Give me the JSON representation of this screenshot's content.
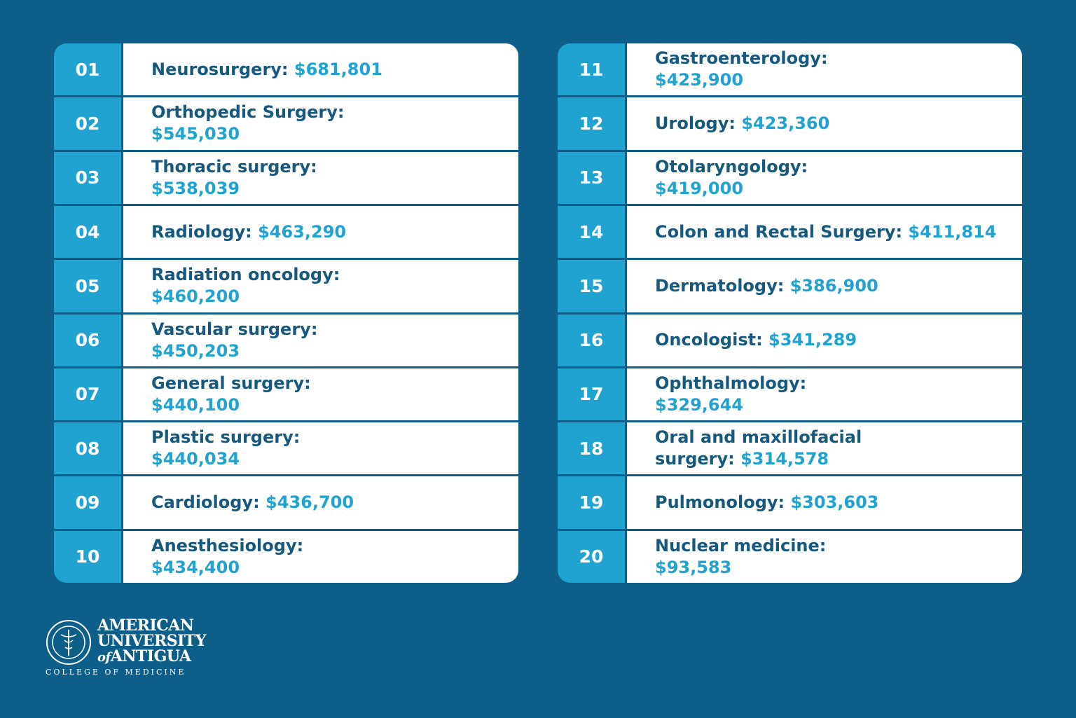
{
  "tables": [
    {
      "rows": [
        {
          "rank": "01",
          "specialty": "Neurosurgery:",
          "salary": "$681,801"
        },
        {
          "rank": "02",
          "specialty": "Orthopedic Surgery:",
          "salary": "$545,030"
        },
        {
          "rank": "03",
          "specialty": "Thoracic surgery:",
          "salary": "$538,039"
        },
        {
          "rank": "04",
          "specialty": "Radiology:",
          "salary": "$463,290"
        },
        {
          "rank": "05",
          "specialty": "Radiation oncology:",
          "salary": "$460,200"
        },
        {
          "rank": "06",
          "specialty": "Vascular surgery:",
          "salary": "$450,203"
        },
        {
          "rank": "07",
          "specialty": "General surgery:",
          "salary": "$440,100"
        },
        {
          "rank": "08",
          "specialty": "Plastic surgery:",
          "salary": "$440,034"
        },
        {
          "rank": "09",
          "specialty": "Cardiology:",
          "salary": "$436,700"
        },
        {
          "rank": "10",
          "specialty": "Anesthesiology:",
          "salary": "$434,400"
        }
      ]
    },
    {
      "rows": [
        {
          "rank": "11",
          "specialty": "Gastroenterology:",
          "salary": "$423,900"
        },
        {
          "rank": "12",
          "specialty": "Urology:",
          "salary": "$423,360"
        },
        {
          "rank": "13",
          "specialty": "Otolaryngology:",
          "salary": "$419,000"
        },
        {
          "rank": "14",
          "specialty": "Colon and Rectal Surgery:",
          "salary": "$411,814"
        },
        {
          "rank": "15",
          "specialty": "Dermatology:",
          "salary": "$386,900"
        },
        {
          "rank": "16",
          "specialty": "Oncologist:",
          "salary": "$341,289"
        },
        {
          "rank": "17",
          "specialty": "Ophthalmology:",
          "salary": "$329,644"
        },
        {
          "rank": "18",
          "specialty": "Oral and maxillofacial surgery:",
          "salary": "$314,578"
        },
        {
          "rank": "19",
          "specialty": "Pulmonology:",
          "salary": "$303,603"
        },
        {
          "rank": "20",
          "specialty": "Nuclear medicine:",
          "salary": "$93,583"
        }
      ]
    }
  ],
  "logo": {
    "line1": "AMERICAN",
    "line2": "UNIVERSITY",
    "of": "of",
    "line3": "ANTIGUA",
    "subtitle": "COLLEGE OF MEDICINE"
  }
}
